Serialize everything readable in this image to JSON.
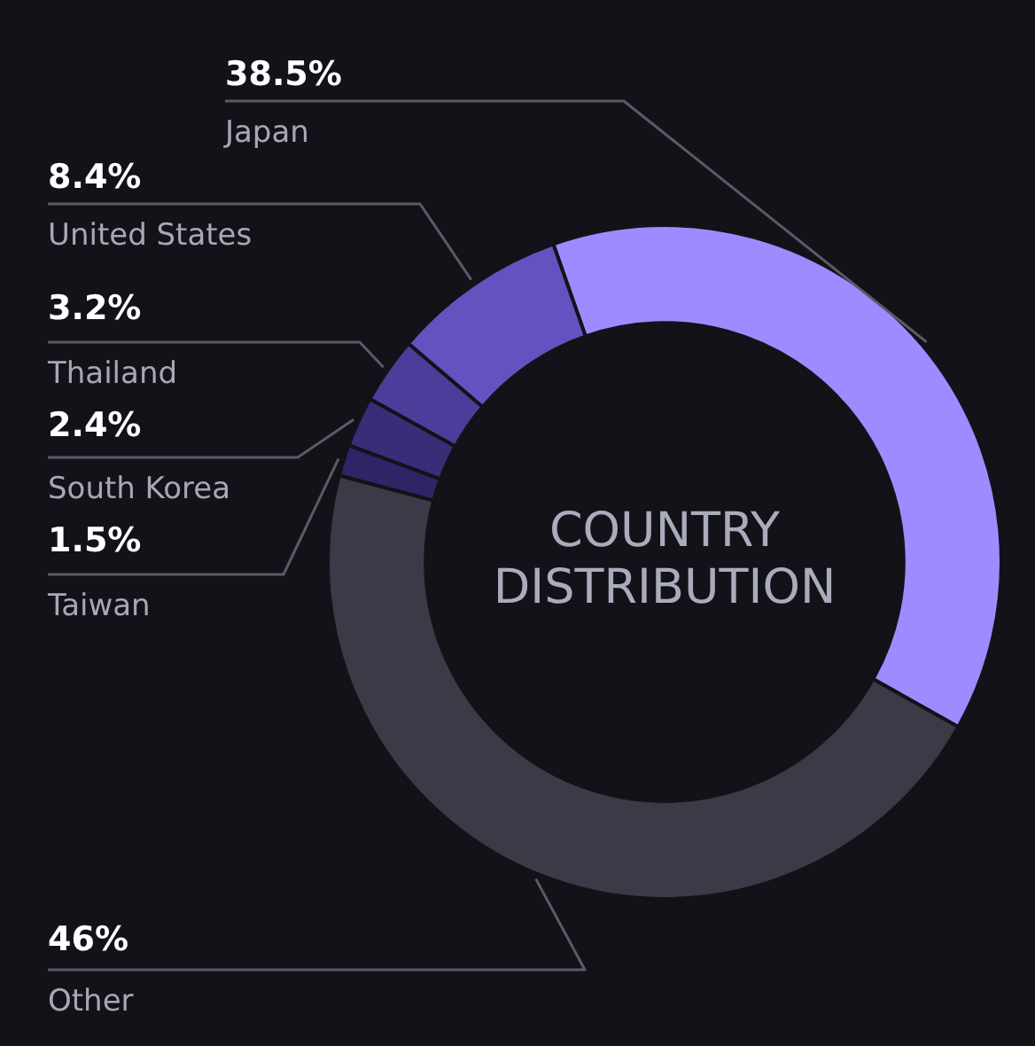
{
  "chart_data": {
    "type": "donut",
    "title": "COUNTRY DISTRIBUTION",
    "categories": [
      "Japan",
      "Other",
      "Taiwan",
      "South Korea",
      "Thailand",
      "United States"
    ],
    "values": [
      38.5,
      46,
      1.5,
      2.4,
      3.2,
      8.4
    ],
    "value_labels": [
      "38.5%",
      "46%",
      "1.5%",
      "2.4%",
      "3.2%",
      "8.4%"
    ],
    "colors": [
      "#9e8bff",
      "#3d3a47",
      "#2e2566",
      "#392d78",
      "#4d3d9b",
      "#6651c0"
    ]
  }
}
